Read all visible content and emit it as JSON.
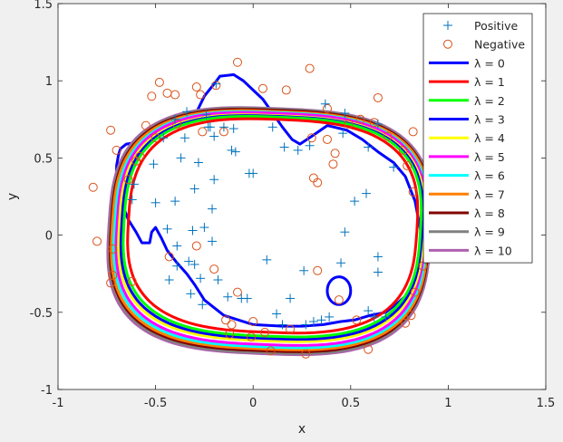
{
  "chart_data": {
    "type": "scatter",
    "title": "",
    "xlabel": "x",
    "ylabel": "y",
    "xlim": [
      -1,
      1.5
    ],
    "ylim": [
      -1,
      1.5
    ],
    "xticks": [
      "-1",
      "-0.5",
      "0",
      "0.5",
      "1",
      "1.5"
    ],
    "yticks": [
      "-1",
      "-0.5",
      "0",
      "0.5",
      "1",
      "1.5"
    ],
    "grid": false,
    "legend_position": "top-right",
    "points": {
      "positive": {
        "name": "Positive",
        "color": "#0072BD",
        "marker": "plus",
        "x": [
          -0.19,
          -0.24,
          -0.34,
          -0.22,
          -0.15,
          -0.1,
          -0.46,
          -0.35,
          -0.2,
          -0.11,
          -0.09,
          -0.51,
          -0.37,
          -0.28,
          -0.2,
          -0.02,
          -0.3,
          -0.4,
          -0.5,
          -0.44,
          -0.21,
          -0.61,
          -0.62,
          -0.39,
          -0.3,
          -0.31,
          -0.25,
          -0.21,
          -0.33,
          -0.39,
          -0.43,
          -0.18,
          -0.03,
          0.07,
          -0.27,
          -0.32,
          -0.26,
          -0.13,
          -0.06,
          0.12,
          0.15,
          0.19,
          0.26,
          0.31,
          0.29,
          0.23,
          0.37,
          0.47,
          0.59,
          0.64,
          0.64,
          0.64,
          0.47,
          0.45,
          0.35,
          0.27,
          0.39,
          0.59,
          0.62,
          0.68,
          0.72,
          0.58,
          0.52,
          0.46,
          0.16,
          0.1,
          -0.23,
          -0.4,
          0.0
        ],
        "y": [
          0.98,
          0.78,
          0.8,
          0.7,
          0.7,
          0.69,
          0.63,
          0.63,
          0.64,
          0.55,
          0.54,
          0.46,
          0.5,
          0.47,
          0.36,
          0.4,
          0.3,
          0.22,
          0.21,
          0.04,
          0.17,
          0.33,
          0.23,
          -0.07,
          -0.19,
          0.03,
          0.05,
          -0.04,
          -0.17,
          -0.2,
          -0.29,
          -0.29,
          -0.41,
          -0.16,
          -0.28,
          -0.38,
          -0.45,
          -0.4,
          -0.41,
          -0.51,
          -0.58,
          -0.41,
          -0.23,
          -0.56,
          0.58,
          0.55,
          0.85,
          0.79,
          0.57,
          0.72,
          -0.14,
          -0.24,
          0.02,
          -0.18,
          -0.55,
          -0.58,
          -0.53,
          -0.49,
          -0.53,
          -0.53,
          0.44,
          0.27,
          0.22,
          0.66,
          0.57,
          0.7,
          0.7,
          0.75,
          0.4
        ]
      },
      "negative": {
        "name": "Negative",
        "color": "#D95319",
        "marker": "circle",
        "x": [
          -0.82,
          -0.73,
          -0.7,
          -0.55,
          -0.48,
          -0.44,
          -0.6,
          -0.64,
          -0.4,
          -0.52,
          -0.5,
          -0.8,
          -0.72,
          -0.72,
          -0.62,
          -0.58,
          -0.27,
          -0.29,
          -0.19,
          -0.15,
          -0.08,
          0.05,
          0.17,
          0.29,
          0.3,
          0.38,
          0.42,
          0.41,
          0.49,
          0.55,
          0.62,
          0.64,
          0.69,
          0.77,
          0.79,
          0.82,
          0.82,
          0.87,
          0.83,
          0.81,
          0.78,
          0.59,
          0.53,
          0.44,
          0.27,
          0.09,
          0.0,
          -0.08,
          -0.12,
          -0.14,
          -0.43,
          -0.29,
          -0.2,
          -0.11,
          -0.01,
          0.06,
          0.19,
          -0.39,
          -0.26,
          0.31,
          0.38,
          -0.73,
          0.33,
          0.33
        ],
        "y": [
          0.31,
          0.68,
          0.55,
          0.71,
          0.99,
          0.92,
          0.48,
          0.36,
          0.91,
          0.9,
          0.63,
          -0.04,
          -0.09,
          -0.26,
          -0.3,
          0.51,
          0.91,
          0.96,
          0.97,
          0.67,
          1.12,
          0.95,
          0.94,
          1.08,
          0.63,
          0.82,
          0.53,
          0.46,
          0.72,
          0.75,
          0.73,
          0.89,
          0.64,
          0.55,
          0.45,
          0.28,
          0.67,
          -0.2,
          -0.37,
          -0.52,
          -0.57,
          -0.74,
          -0.55,
          -0.42,
          -0.77,
          -0.75,
          -0.56,
          -0.37,
          -0.64,
          -0.55,
          -0.14,
          -0.07,
          -0.22,
          -0.58,
          -0.66,
          -0.63,
          -0.61,
          0.72,
          0.67,
          0.37,
          0.62,
          -0.31,
          -0.23,
          0.34
        ]
      }
    },
    "boundaries": [
      {
        "name": "λ = 0",
        "color": "#0000FF",
        "params": {
          "cx": 0.1,
          "cy": 0.03,
          "rx": 0.69,
          "ry": 0.62,
          "sq": 0.28,
          "tilt": -0.04
        }
      },
      {
        "name": "λ = 1",
        "color": "#FF0000",
        "params": {
          "cx": 0.1,
          "cy": 0.06,
          "rx": 0.74,
          "ry": 0.69,
          "sq": 0.3,
          "tilt": -0.05
        }
      },
      {
        "name": "λ = 2",
        "color": "#00FF00",
        "params": {
          "cx": 0.098,
          "cy": 0.055,
          "rx": 0.76,
          "ry": 0.71,
          "sq": 0.31,
          "tilt": -0.05
        }
      },
      {
        "name": "λ = 3",
        "color": "#0000FF",
        "params": {
          "cx": 0.096,
          "cy": 0.05,
          "rx": 0.77,
          "ry": 0.72,
          "sq": 0.32,
          "tilt": -0.05
        }
      },
      {
        "name": "λ = 4",
        "color": "#FFFF00",
        "params": {
          "cx": 0.094,
          "cy": 0.045,
          "rx": 0.78,
          "ry": 0.73,
          "sq": 0.32,
          "tilt": -0.05
        }
      },
      {
        "name": "λ = 5",
        "color": "#FF00FF",
        "params": {
          "cx": 0.092,
          "cy": 0.04,
          "rx": 0.79,
          "ry": 0.75,
          "sq": 0.33,
          "tilt": -0.05
        }
      },
      {
        "name": "λ = 6",
        "color": "#00FFFF",
        "params": {
          "cx": 0.09,
          "cy": 0.035,
          "rx": 0.8,
          "ry": 0.76,
          "sq": 0.33,
          "tilt": -0.05
        }
      },
      {
        "name": "λ = 7",
        "color": "#FF8000",
        "params": {
          "cx": 0.088,
          "cy": 0.032,
          "rx": 0.81,
          "ry": 0.77,
          "sq": 0.34,
          "tilt": -0.05
        }
      },
      {
        "name": "λ = 8",
        "color": "#800000",
        "params": {
          "cx": 0.087,
          "cy": 0.03,
          "rx": 0.815,
          "ry": 0.78,
          "sq": 0.34,
          "tilt": -0.05
        }
      },
      {
        "name": "λ = 9",
        "color": "#808080",
        "params": {
          "cx": 0.086,
          "cy": 0.028,
          "rx": 0.82,
          "ry": 0.79,
          "sq": 0.34,
          "tilt": -0.05
        }
      },
      {
        "name": "λ = 10",
        "color": "#B060B0",
        "params": {
          "cx": 0.085,
          "cy": 0.026,
          "rx": 0.825,
          "ry": 0.795,
          "sq": 0.35,
          "tilt": -0.05
        }
      }
    ],
    "lambda0_extra_loops": [
      {
        "name": "λ = 0",
        "color": "#0000FF",
        "shape": "small-ellipse",
        "cx": 0.44,
        "cy": -0.36,
        "rx": 0.06,
        "ry": 0.09
      }
    ],
    "lambda0_path": {
      "x": [
        -0.6,
        -0.5,
        -0.4,
        -0.3,
        -0.25,
        -0.2,
        -0.17,
        -0.1,
        -0.05,
        0.05,
        0.15,
        0.2,
        0.24,
        0.3,
        0.38,
        0.48,
        0.56,
        0.64,
        0.72,
        0.78,
        0.83,
        0.86,
        0.86,
        0.82,
        0.75,
        0.68,
        0.6,
        0.52,
        0.45,
        0.36,
        0.25,
        0.15,
        0.0,
        -0.15,
        -0.25,
        -0.3,
        -0.34,
        -0.39,
        -0.44,
        -0.47,
        -0.5,
        -0.52,
        -0.53,
        -0.57,
        -0.6,
        -0.64,
        -0.67,
        -0.69,
        -0.7,
        -0.7,
        -0.69,
        -0.68,
        -0.65,
        -0.6
      ],
      "y": [
        0.6,
        0.65,
        0.72,
        0.77,
        0.9,
        0.98,
        1.03,
        1.04,
        1.0,
        0.88,
        0.7,
        0.62,
        0.59,
        0.64,
        0.71,
        0.68,
        0.62,
        0.54,
        0.47,
        0.38,
        0.22,
        0.02,
        -0.2,
        -0.35,
        -0.43,
        -0.5,
        -0.52,
        -0.55,
        -0.56,
        -0.58,
        -0.59,
        -0.59,
        -0.58,
        -0.52,
        -0.42,
        -0.32,
        -0.25,
        -0.18,
        -0.1,
        -0.02,
        0.05,
        0.02,
        -0.05,
        -0.05,
        0.02,
        0.1,
        0.2,
        0.3,
        0.38,
        0.45,
        0.52,
        0.56,
        0.59,
        0.6
      ]
    }
  }
}
